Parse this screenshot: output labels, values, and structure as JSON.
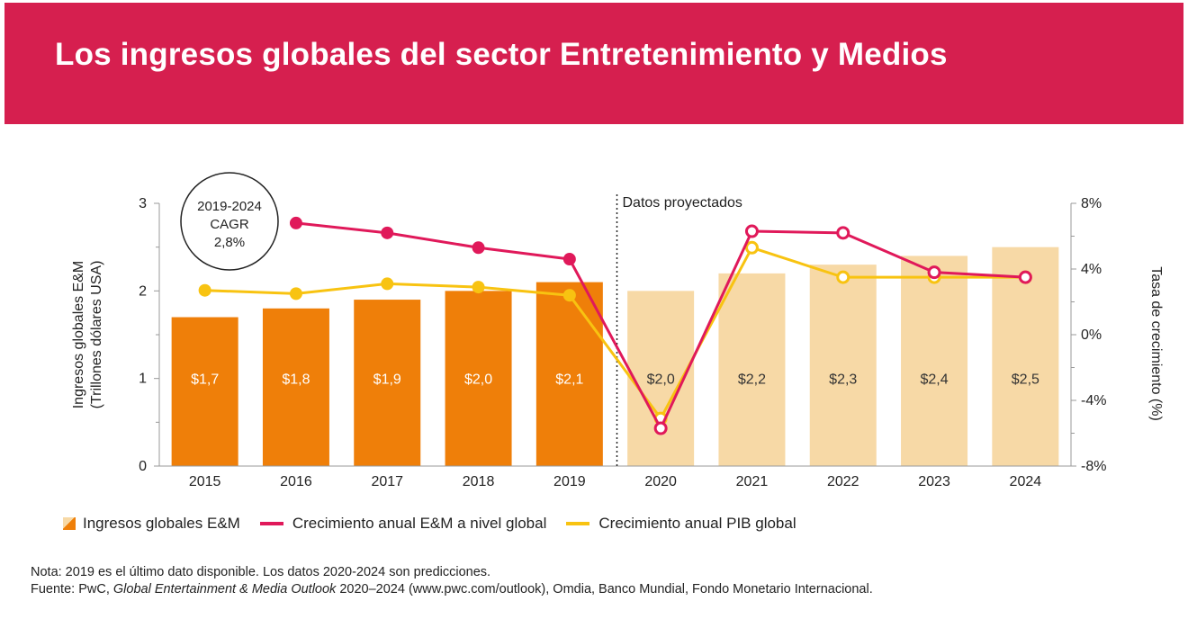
{
  "title": "Los ingresos globales del sector Entretenimiento y Medios",
  "cagr_badge": {
    "line1": "2019-2024",
    "line2": "CAGR",
    "line3": "2,8%"
  },
  "projected_label": "Datos proyectados",
  "legend": {
    "bars": "Ingresos globales E&M",
    "line1": "Crecimiento anual E&M a nivel global",
    "line2": "Crecimiento anual PIB global"
  },
  "notes": {
    "line1": "Nota: 2019 es el último dato disponible. Los datos 2020-2024 son predicciones.",
    "src_prefix": "Fuente: PwC, ",
    "src_italic": "Global Entertainment & Media Outlook",
    "src_suffix": " 2020–2024 (www.pwc.com/outlook), Omdia, Banco Mundial, Fondo Monetario Internacional."
  },
  "colors": {
    "banner": "#d61f4f",
    "bar_actual": "#ef7f09",
    "bar_projected": "#f7d9a6",
    "em_line": "#e0195a",
    "gdp_line": "#f8c311"
  },
  "chart_data": {
    "type": "bar",
    "categories": [
      "2015",
      "2016",
      "2017",
      "2018",
      "2019",
      "2020",
      "2021",
      "2022",
      "2023",
      "2024"
    ],
    "values": [
      1.7,
      1.8,
      1.9,
      2.0,
      2.1,
      2.0,
      2.2,
      2.3,
      2.4,
      2.5
    ],
    "value_labels": [
      "$1,7",
      "$1,8",
      "$1,9",
      "$2,0",
      "$2,1",
      "$2,0",
      "$2,2",
      "$2,3",
      "$2,4",
      "$2,5"
    ],
    "projected_from": "2020",
    "ylabel_line1": "Ingresos globales E&M",
    "ylabel_line2": "(Trillones dólares USA)",
    "ylim": [
      0,
      3
    ],
    "yticks": [
      "0",
      "1",
      "2",
      "3"
    ],
    "y2label": "Tasa de crecimiento (%)",
    "y2lim": [
      -8,
      8
    ],
    "y2ticks": [
      "-8%",
      "-4%",
      "0%",
      "4%",
      "8%"
    ],
    "lines": [
      {
        "name": "Crecimiento anual E&M a nivel global",
        "x": [
          "2016",
          "2017",
          "2018",
          "2019",
          "2020",
          "2021",
          "2022",
          "2023",
          "2024"
        ],
        "values": [
          6.8,
          6.2,
          5.3,
          4.6,
          -5.7,
          6.3,
          6.2,
          3.8,
          3.5
        ]
      },
      {
        "name": "Crecimiento anual PIB global",
        "x": [
          "2015",
          "2016",
          "2017",
          "2018",
          "2019",
          "2020",
          "2021",
          "2022",
          "2023",
          "2024"
        ],
        "values": [
          2.7,
          2.5,
          3.1,
          2.9,
          2.4,
          -5.1,
          5.3,
          3.5,
          3.5,
          3.5
        ]
      }
    ],
    "grid": false,
    "legend_position": "bottom"
  }
}
